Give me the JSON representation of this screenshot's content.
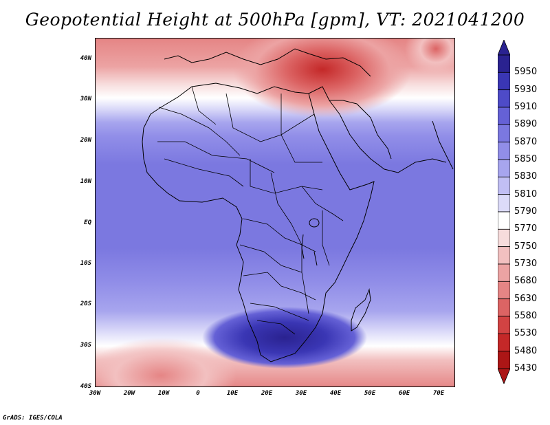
{
  "title": "Geopotential Height at 500hPa [gpm], VT: 2021041200",
  "footer": "GrADS: IGES/COLA",
  "map": {
    "lat_labels": [
      "40N",
      "30N",
      "20N",
      "10N",
      "EQ",
      "10S",
      "20S",
      "30S",
      "40S"
    ],
    "lon_labels": [
      "30W",
      "20W",
      "10W",
      "0",
      "10E",
      "20E",
      "30E",
      "40E",
      "50E",
      "60E",
      "70E"
    ]
  },
  "colorbar": {
    "levels": [
      "5950",
      "5930",
      "5910",
      "5890",
      "5870",
      "5850",
      "5830",
      "5810",
      "5790",
      "5770",
      "5750",
      "5730",
      "5680",
      "5630",
      "5580",
      "5530",
      "5480",
      "5430"
    ],
    "colors": [
      "#2a2290",
      "#3a36b4",
      "#4e4bc8",
      "#6561d6",
      "#7b78e0",
      "#918ee8",
      "#a7a5ee",
      "#c1bff4",
      "#dcdbf9",
      "#ffffff",
      "#f7dcdc",
      "#f2c0c0",
      "#eca3a3",
      "#e58585",
      "#dc6464",
      "#d24343",
      "#c42828",
      "#ac1616"
    ]
  }
}
